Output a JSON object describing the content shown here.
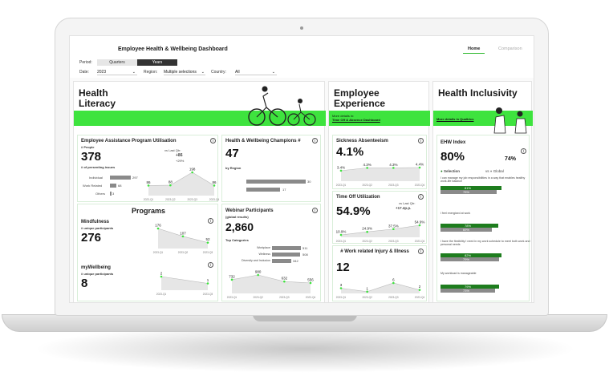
{
  "app": {
    "title": "Employee Health & Wellbeing Dashboard",
    "nav": [
      "Home",
      "Comparison"
    ]
  },
  "filters": {
    "period_label": "Period:",
    "period_options": [
      "Quarters",
      "Years"
    ],
    "date_label": "Date:",
    "date_value": "2023",
    "region_label": "Region:",
    "region_value": "Multiple selections",
    "country_label": "Country:",
    "country_value": "All"
  },
  "colors": {
    "accent": "#3ee33e",
    "dark_green": "#1e7d1e",
    "gray": "#8a8a8a"
  },
  "health_literacy": {
    "heading": "Health Literacy",
    "eap": {
      "title": "Employee Assistance Program Utilisation",
      "sub": "# People",
      "value": "378",
      "vs_label": "vs Last Qtr:",
      "vs_value": "+86",
      "vs_pct": "+29%",
      "issues_label": "# of presenting issues",
      "bars": [
        {
          "label": "Individual",
          "value": "297"
        },
        {
          "label": "Work Related",
          "value": "68"
        },
        {
          "label": "Others",
          "value": "3"
        }
      ],
      "trend": {
        "values": [
          "86",
          "88",
          "198",
          "86"
        ],
        "x": [
          "2023-Q1",
          "2023-Q2",
          "2023-Q3",
          "2023-Q4"
        ]
      }
    },
    "champions": {
      "title": "Health & Wellbeing Champions #",
      "value": "47",
      "by_region": "by Region",
      "bars": [
        "30",
        "17"
      ]
    },
    "programs": {
      "heading": "Programs",
      "mindfulness": {
        "title": "Mindfulness",
        "sub": "# unique participants",
        "value": "276",
        "trend": [
          "176",
          "107",
          "52"
        ],
        "x": [
          "2023-Q1",
          "2023-Q2",
          "2023-Q3"
        ]
      },
      "mywellbeing": {
        "title": "myWellbeing",
        "sub": "# unique participants",
        "value": "8",
        "trend": [
          "2",
          "1"
        ],
        "x": [
          "2023-Q1",
          "2023-Q3"
        ]
      }
    },
    "webinar": {
      "title": "Webinar Participants",
      "sub": "(global results)",
      "value": "2,860",
      "top_label": "Top Categories",
      "cats": [
        {
          "label": "Workplace",
          "value": "511"
        },
        {
          "label": "Wellness",
          "value": "508"
        },
        {
          "label": "Diversity and Inclusion",
          "value": "342"
        }
      ],
      "trend": [
        "732",
        "980",
        "632",
        "556"
      ],
      "x": [
        "2023-Q1",
        "2023-Q2",
        "2023-Q3",
        "2023-Q4"
      ]
    }
  },
  "employee_experience": {
    "heading": "Employee Experience",
    "band_text": "More details in:",
    "band_link": "Time Off & Absence Dashboard",
    "sickness": {
      "title": "Sickness Absenteeism",
      "value": "4.1%",
      "trend": [
        "3.4%",
        "4.3%",
        "4.3%",
        "4.4%"
      ],
      "x": [
        "2023-Q1",
        "2023-Q2",
        "2023-Q3",
        "2023-Q4"
      ]
    },
    "timeoff": {
      "title": "Time Off Utilization",
      "value": "54.9%",
      "vs_label": "vs Last Qtr:",
      "vs_value": "+17.4p.p.",
      "trend": [
        "10.9%",
        "24.9%",
        "37.5%",
        "54.9%"
      ],
      "x": [
        "2023-Q1",
        "2023-Q2",
        "2023-Q3",
        "2023-Q4"
      ]
    },
    "injury": {
      "title": "# Work related Injury & Illness",
      "value": "12",
      "trend": [
        "3",
        "1",
        "6",
        "2"
      ],
      "x": [
        "2023-Q1",
        "2023-Q2",
        "2023-Q3",
        "2023-Q4"
      ]
    }
  },
  "health_inclusivity": {
    "heading": "Health Inclusivity",
    "band_link": "More details in Qualtrics",
    "ehw": {
      "title": "EHW Index",
      "value": "80%",
      "global_value": "74%",
      "sel_label": "Selection",
      "global_label": "Global",
      "vs": "vs",
      "items": [
        {
          "q": "I can manage my job responsibilities in a way that enables healthy work-life balance",
          "sel": "81%",
          "glob": "75%"
        },
        {
          "q": "I feel energised at work",
          "sel": "78%",
          "glob": "69%"
        },
        {
          "q": "I have the flexibility I need in my work schedule to meet both work and personal needs",
          "sel": "82%",
          "glob": "79%"
        },
        {
          "q": "My workload is manageable",
          "sel": "79%",
          "glob": "73%"
        }
      ]
    }
  }
}
